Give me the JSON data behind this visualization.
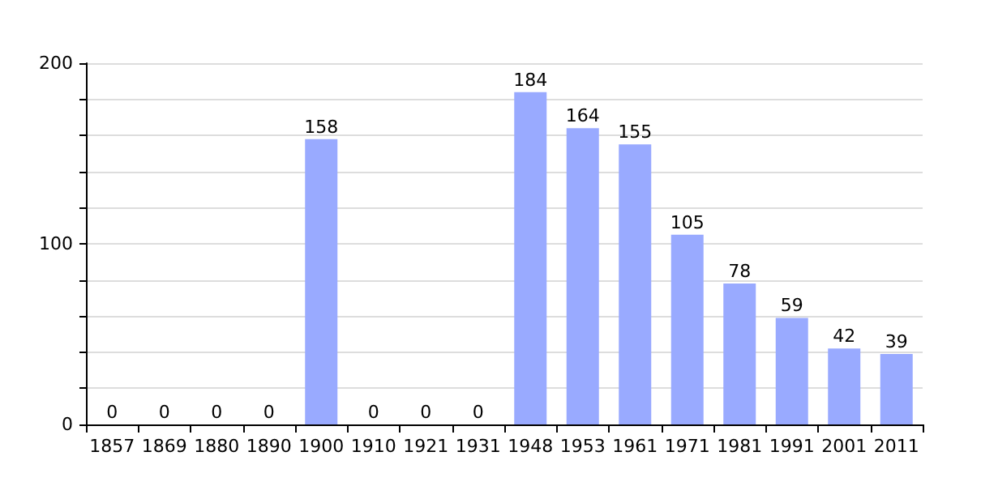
{
  "chart_data": {
    "type": "bar",
    "categories": [
      "1857",
      "1869",
      "1880",
      "1890",
      "1900",
      "1910",
      "1921",
      "1931",
      "1948",
      "1953",
      "1961",
      "1971",
      "1981",
      "1991",
      "2001",
      "2011"
    ],
    "values": [
      0,
      0,
      0,
      0,
      158,
      0,
      0,
      0,
      184,
      164,
      155,
      105,
      78,
      59,
      42,
      39
    ],
    "color": "#99aaff",
    "ylim": [
      0,
      200
    ],
    "yticks": [
      0,
      {
        "value": 20,
        "label": null
      },
      {
        "value": 40,
        "label": null
      },
      {
        "value": 60,
        "label": null
      },
      {
        "value": 80,
        "label": null
      },
      100,
      {
        "value": 120,
        "label": null
      },
      {
        "value": 140,
        "label": null
      },
      {
        "value": 160,
        "label": null
      },
      {
        "value": 180,
        "label": null
      },
      200
    ],
    "grid": "y",
    "data_labels": true
  }
}
